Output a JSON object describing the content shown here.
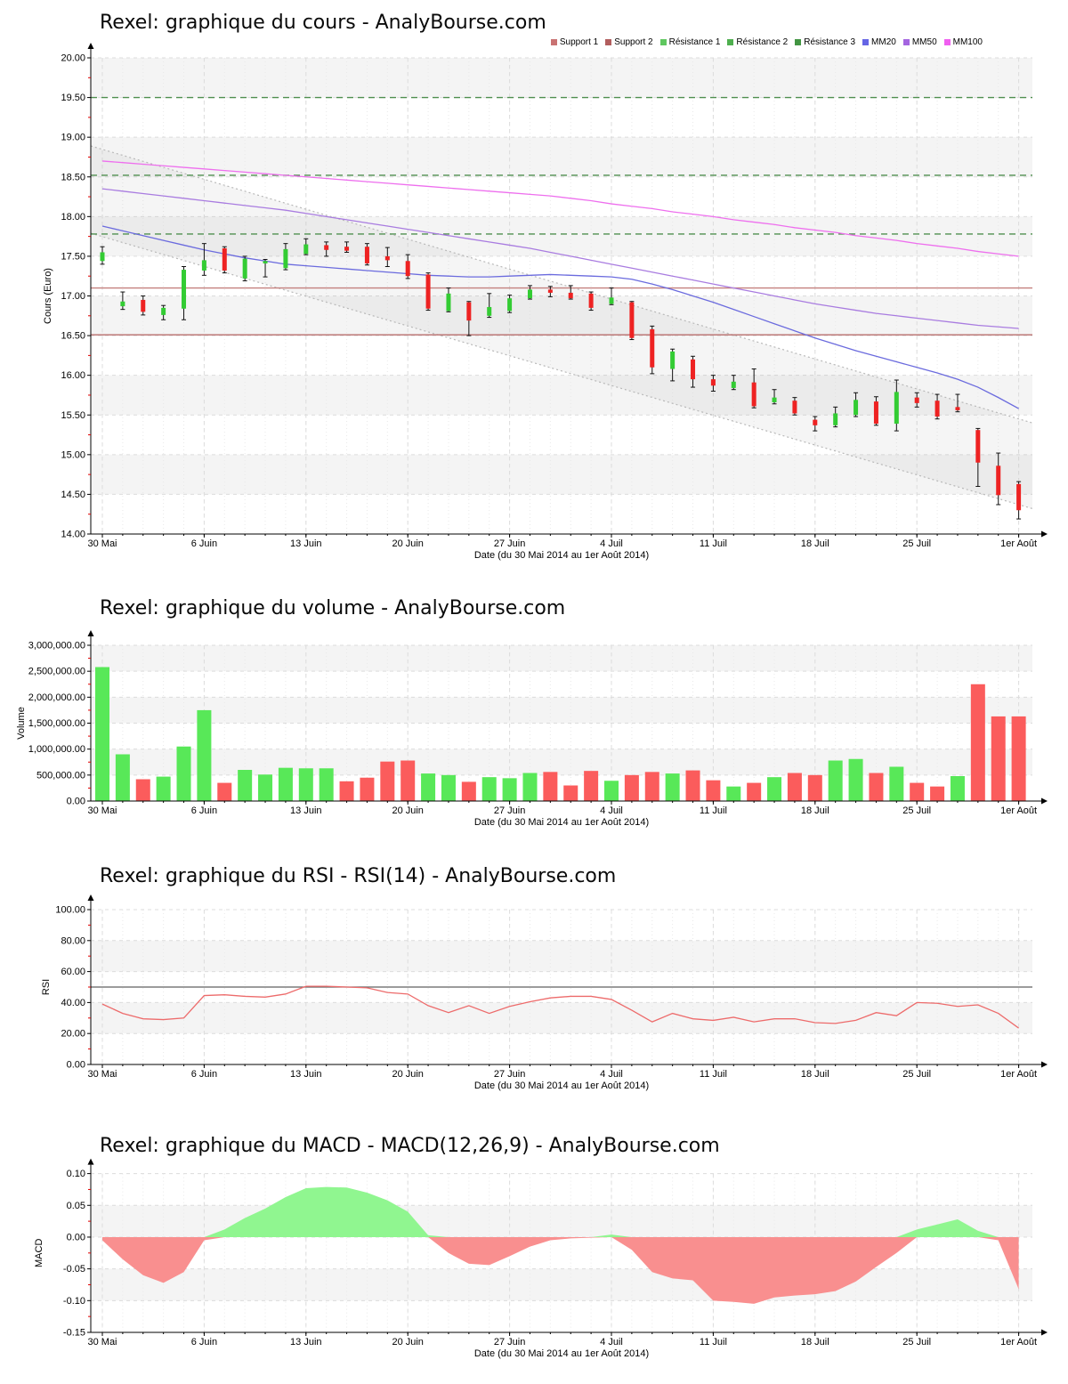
{
  "page": {
    "background": "#ffffff"
  },
  "legend": {
    "items": [
      {
        "label": "Support 1",
        "color": "#C97272"
      },
      {
        "label": "Support 2",
        "color": "#B25E5E"
      },
      {
        "label": "Résistance 1",
        "color": "#5FC75F"
      },
      {
        "label": "Résistance 2",
        "color": "#4FAF4F"
      },
      {
        "label": "Résistance 3",
        "color": "#429542"
      },
      {
        "label": "MM20",
        "color": "#6565E5"
      },
      {
        "label": "MM50",
        "color": "#A465E0"
      },
      {
        "label": "MM100",
        "color": "#F05FF0"
      }
    ]
  },
  "chart_data": [
    {
      "id": "price",
      "type": "candlestick",
      "title": "Rexel: graphique du cours - AnalyBourse.com",
      "ylabel": "Cours (Euro)",
      "xlabel": "Date (du 30 Mai 2014 au 1er Août 2014)",
      "ylim": [
        14.0,
        20.0
      ],
      "ytick_labels": [
        "20.00",
        "19.50",
        "19.00",
        "18.50",
        "18.00",
        "17.50",
        "17.00",
        "16.50",
        "16.00",
        "15.50",
        "15.00",
        "14.50",
        "14.00"
      ],
      "xtick_labels": [
        "30 Mai",
        "6 Juin",
        "13 Juin",
        "20 Juin",
        "27 Juin",
        "4 Juil",
        "11 Juil",
        "18 Juil",
        "25 Juil",
        "1er Août"
      ],
      "xtick_day_index": [
        0,
        5,
        10,
        15,
        20,
        25,
        30,
        35,
        40,
        45
      ],
      "candle_colors": {
        "up": "#33CC33",
        "down": "#EE2222",
        "wick": "#111111"
      },
      "candles": [
        [
          17.44,
          17.62,
          17.4,
          17.55
        ],
        [
          16.87,
          17.05,
          16.83,
          16.93
        ],
        [
          16.95,
          17.0,
          16.76,
          16.8
        ],
        [
          16.76,
          16.88,
          16.7,
          16.85
        ],
        [
          16.84,
          17.37,
          16.7,
          17.33
        ],
        [
          17.32,
          17.66,
          17.26,
          17.45
        ],
        [
          17.6,
          17.62,
          17.29,
          17.32
        ],
        [
          17.22,
          17.5,
          17.19,
          17.47
        ],
        [
          17.41,
          17.46,
          17.24,
          17.44
        ],
        [
          17.35,
          17.66,
          17.33,
          17.59
        ],
        [
          17.53,
          17.72,
          17.52,
          17.65
        ],
        [
          17.64,
          17.68,
          17.5,
          17.58
        ],
        [
          17.62,
          17.68,
          17.55,
          17.57
        ],
        [
          17.62,
          17.66,
          17.39,
          17.41
        ],
        [
          17.5,
          17.61,
          17.37,
          17.45
        ],
        [
          17.44,
          17.52,
          17.22,
          17.25
        ],
        [
          17.27,
          17.29,
          16.82,
          16.84
        ],
        [
          16.81,
          17.1,
          16.8,
          17.03
        ],
        [
          16.92,
          16.93,
          16.5,
          16.69
        ],
        [
          16.75,
          17.03,
          16.73,
          16.86
        ],
        [
          16.81,
          17.01,
          16.79,
          16.97
        ],
        [
          16.97,
          17.13,
          16.96,
          17.08
        ],
        [
          17.08,
          17.12,
          16.99,
          17.04
        ],
        [
          17.04,
          17.13,
          16.96,
          16.97
        ],
        [
          17.03,
          17.05,
          16.82,
          16.85
        ],
        [
          16.9,
          17.1,
          16.89,
          16.98
        ],
        [
          16.92,
          16.93,
          16.45,
          16.47
        ],
        [
          16.58,
          16.62,
          16.02,
          16.1
        ],
        [
          16.08,
          16.33,
          15.93,
          16.3
        ],
        [
          16.2,
          16.24,
          15.85,
          15.95
        ],
        [
          15.95,
          16.0,
          15.8,
          15.87
        ],
        [
          15.84,
          16.0,
          15.82,
          15.92
        ],
        [
          15.91,
          16.08,
          15.59,
          15.61
        ],
        [
          15.66,
          15.82,
          15.64,
          15.72
        ],
        [
          15.68,
          15.72,
          15.5,
          15.52
        ],
        [
          15.44,
          15.48,
          15.3,
          15.37
        ],
        [
          15.37,
          15.6,
          15.35,
          15.52
        ],
        [
          15.5,
          15.78,
          15.48,
          15.69
        ],
        [
          15.67,
          15.73,
          15.37,
          15.39
        ],
        [
          15.39,
          15.94,
          15.3,
          15.79
        ],
        [
          15.72,
          15.78,
          15.6,
          15.65
        ],
        [
          15.68,
          15.76,
          15.45,
          15.48
        ],
        [
          15.6,
          15.76,
          15.54,
          15.56
        ],
        [
          15.31,
          15.33,
          14.6,
          14.9
        ],
        [
          14.86,
          15.02,
          14.37,
          14.49
        ],
        [
          14.63,
          14.66,
          14.19,
          14.3
        ]
      ],
      "supports": [
        {
          "name": "Support 1",
          "level": 17.1,
          "color": "#C4807E"
        },
        {
          "name": "Support 2",
          "level": 16.51,
          "color": "#B96E6C"
        }
      ],
      "resistances": [
        {
          "name": "Résistance 1",
          "level": 17.78,
          "color": "#4F8F4F"
        },
        {
          "name": "Résistance 2",
          "level": 18.52,
          "color": "#4F8F4F"
        },
        {
          "name": "Résistance 3",
          "level": 19.5,
          "color": "#4F8F4F"
        }
      ],
      "channel": {
        "upper": [
          18.89,
          15.4
        ],
        "lower": [
          17.79,
          14.32
        ],
        "color": "#B8B8B8"
      },
      "overlays": {
        "mm20": {
          "name": "MM20",
          "color": "#6B6BDE",
          "values": [
            17.88,
            17.82,
            17.76,
            17.7,
            17.64,
            17.58,
            17.53,
            17.48,
            17.44,
            17.4,
            17.38,
            17.36,
            17.34,
            17.32,
            17.3,
            17.28,
            17.26,
            17.25,
            17.24,
            17.24,
            17.25,
            17.26,
            17.27,
            17.26,
            17.25,
            17.24,
            17.21,
            17.15,
            17.08,
            17.0,
            16.92,
            16.83,
            16.74,
            16.65,
            16.56,
            16.47,
            16.39,
            16.31,
            16.24,
            16.17,
            16.1,
            16.03,
            15.95,
            15.85,
            15.72,
            15.58
          ]
        },
        "mm50": {
          "name": "MM50",
          "color": "#A97CE0",
          "values": [
            18.35,
            18.32,
            18.29,
            18.26,
            18.23,
            18.2,
            18.17,
            18.14,
            18.11,
            18.08,
            18.04,
            18.0,
            17.96,
            17.92,
            17.88,
            17.84,
            17.8,
            17.76,
            17.72,
            17.68,
            17.64,
            17.6,
            17.55,
            17.5,
            17.45,
            17.4,
            17.35,
            17.3,
            17.25,
            17.2,
            17.15,
            17.1,
            17.05,
            17.0,
            16.95,
            16.9,
            16.86,
            16.82,
            16.78,
            16.75,
            16.72,
            16.69,
            16.66,
            16.63,
            16.61,
            16.59
          ]
        },
        "mm100": {
          "name": "MM100",
          "color": "#EE6FEE",
          "values": [
            18.7,
            18.68,
            18.66,
            18.64,
            18.62,
            18.6,
            18.58,
            18.56,
            18.54,
            18.52,
            18.5,
            18.48,
            18.46,
            18.44,
            18.42,
            18.4,
            18.38,
            18.36,
            18.34,
            18.32,
            18.3,
            18.28,
            18.26,
            18.23,
            18.2,
            18.16,
            18.13,
            18.1,
            18.06,
            18.03,
            18.0,
            17.96,
            17.93,
            17.9,
            17.86,
            17.83,
            17.8,
            17.76,
            17.73,
            17.7,
            17.66,
            17.63,
            17.6,
            17.56,
            17.53,
            17.5
          ]
        }
      }
    },
    {
      "id": "volume",
      "type": "bar",
      "title": "Rexel: graphique du volume - AnalyBourse.com",
      "ylabel": "Volume",
      "xlabel": "Date (du 30 Mai 2014 au 1er Août 2014)",
      "ylim": [
        0,
        3000000
      ],
      "ytick_labels": [
        "3,000,000.00",
        "2,500,000.00",
        "2,000,000.00",
        "1,500,000.00",
        "1,000,000.00",
        "500,000.00",
        "0.00"
      ],
      "xtick_labels": [
        "30 Mai",
        "6 Juin",
        "13 Juin",
        "20 Juin",
        "27 Juin",
        "4 Juil",
        "11 Juil",
        "18 Juil",
        "25 Juil",
        "1er Août"
      ],
      "xtick_day_index": [
        0,
        5,
        10,
        15,
        20,
        25,
        30,
        35,
        40,
        45
      ],
      "colors": {
        "up": "#58E858",
        "down": "#FB5C5C"
      },
      "values": [
        2580000,
        900000,
        420000,
        470000,
        1050000,
        1750000,
        350000,
        600000,
        510000,
        640000,
        630000,
        630000,
        380000,
        450000,
        760000,
        780000,
        530000,
        500000,
        370000,
        460000,
        440000,
        540000,
        560000,
        300000,
        580000,
        390000,
        500000,
        560000,
        530000,
        590000,
        400000,
        280000,
        350000,
        460000,
        540000,
        500000,
        780000,
        810000,
        540000,
        660000,
        350000,
        280000,
        480000,
        2250000,
        1630000,
        1630000
      ],
      "dirs": [
        1,
        1,
        0,
        1,
        1,
        1,
        0,
        1,
        1,
        1,
        1,
        1,
        0,
        0,
        0,
        0,
        1,
        1,
        0,
        1,
        1,
        1,
        0,
        0,
        0,
        1,
        0,
        0,
        1,
        0,
        0,
        1,
        0,
        1,
        0,
        0,
        1,
        1,
        0,
        1,
        0,
        0,
        1,
        0,
        0,
        0
      ]
    },
    {
      "id": "rsi",
      "type": "line",
      "title": "Rexel: graphique du RSI - RSI(14) - AnalyBourse.com",
      "ylabel": "RSI",
      "xlabel": "Date (du 30 Mai 2014 au 1er Août 2014)",
      "ylim": [
        0,
        100
      ],
      "ytick_labels": [
        "100.00",
        "80.00",
        "60.00",
        "40.00",
        "20.00",
        "0.00"
      ],
      "xtick_labels": [
        "30 Mai",
        "6 Juin",
        "13 Juin",
        "20 Juin",
        "27 Juin",
        "4 Juil",
        "11 Juil",
        "18 Juil",
        "25 Juil",
        "1er Août"
      ],
      "xtick_day_index": [
        0,
        5,
        10,
        15,
        20,
        25,
        30,
        35,
        40,
        45
      ],
      "line_color": "#ED6B6B",
      "hline": {
        "level": 50,
        "color": "#606060"
      },
      "values": [
        39,
        33,
        29.5,
        29,
        30,
        44.5,
        45,
        44,
        43.5,
        45.5,
        50.5,
        50.5,
        50,
        49.5,
        46.5,
        45.5,
        38,
        33.5,
        38,
        33,
        37.5,
        40.5,
        43,
        44,
        44,
        42,
        35,
        27.5,
        33,
        29.5,
        28.5,
        30.5,
        27.5,
        29.5,
        29.5,
        27,
        26.5,
        28.5,
        33.5,
        31.5,
        40,
        39.5,
        37.5,
        38.5,
        33,
        23.5
      ]
    },
    {
      "id": "macd",
      "type": "area",
      "title": "Rexel: graphique du MACD - MACD(12,26,9) - AnalyBourse.com",
      "ylabel": "MACD",
      "xlabel": "Date (du 30 Mai 2014 au 1er Août 2014)",
      "ylim": [
        -0.15,
        0.105
      ],
      "ytick_labels": [
        "0.10",
        "0.05",
        "0.00",
        "-0.05",
        "-0.10",
        "-0.15"
      ],
      "xtick_labels": [
        "30 Mai",
        "6 Juin",
        "13 Juin",
        "20 Juin",
        "27 Juin",
        "4 Juil",
        "11 Juil",
        "18 Juil",
        "25 Juil",
        "1er Août"
      ],
      "xtick_day_index": [
        0,
        5,
        10,
        15,
        20,
        25,
        30,
        35,
        40,
        45
      ],
      "colors": {
        "pos": "#90F690",
        "neg": "#F98F8F"
      },
      "values": [
        -0.005,
        -0.035,
        -0.06,
        -0.072,
        -0.055,
        -0.005,
        0.012,
        0.03,
        0.045,
        0.063,
        0.077,
        0.079,
        0.078,
        0.07,
        0.058,
        0.04,
        0.003,
        -0.025,
        -0.042,
        -0.044,
        -0.03,
        -0.015,
        -0.005,
        -0.002,
        -0.001,
        0.004,
        -0.02,
        -0.055,
        -0.065,
        -0.068,
        -0.1,
        -0.102,
        -0.105,
        -0.095,
        -0.092,
        -0.09,
        -0.085,
        -0.07,
        -0.047,
        -0.025,
        0.012,
        0.02,
        0.028,
        0.01,
        -0.005,
        -0.082
      ]
    }
  ]
}
